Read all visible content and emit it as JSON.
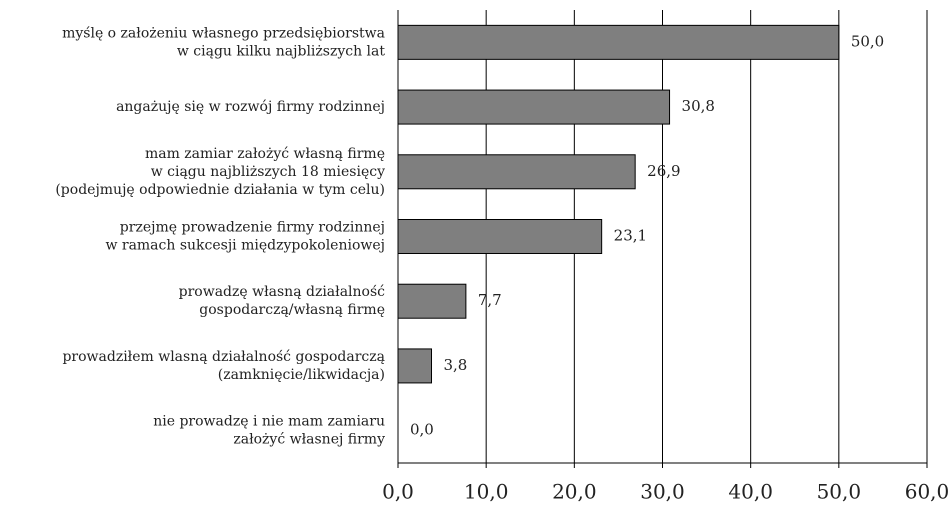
{
  "chart_data": {
    "type": "bar",
    "orientation": "horizontal",
    "categories": [
      [
        "myślę o założeniu własnego przedsiębiorstwa",
        "w ciągu kilku najbliższych lat"
      ],
      [
        "angażuję się w rozwój firmy rodzinnej"
      ],
      [
        "mam zamiar założyć własną firmę",
        "w ciągu najbliższych 18 miesięcy",
        "(podejmuję odpowiednie działania w tym celu)"
      ],
      [
        "przejmę prowadzenie firmy rodzinnej",
        "w ramach sukcesji międzypokoleniowej"
      ],
      [
        "prowadzę własną działalność",
        "gospodarczą/własną firmę"
      ],
      [
        "prowadziłem wlasną działalność gospodarczą",
        "(zamknięcie/likwidacja)"
      ],
      [
        "nie prowadzę i nie mam zamiaru",
        "założyć własnej firmy"
      ]
    ],
    "values": [
      50.0,
      30.8,
      26.9,
      23.1,
      7.7,
      3.8,
      0.0
    ],
    "value_labels": [
      "50,0",
      "30,8",
      "26,9",
      "23,1",
      "7,7",
      "3,8",
      "0,0"
    ],
    "color": "#7f7f7f",
    "xlim": [
      0,
      60
    ],
    "xticks": [
      {
        "value": 0,
        "label": "0,0"
      },
      {
        "value": 10,
        "label": "10,0"
      },
      {
        "value": 20,
        "label": "20,0"
      },
      {
        "value": 30,
        "label": "30,0"
      },
      {
        "value": 40,
        "label": "40,0"
      },
      {
        "value": 50,
        "label": "50,0"
      },
      {
        "value": 60,
        "label": "60,0"
      }
    ],
    "grid": true
  }
}
